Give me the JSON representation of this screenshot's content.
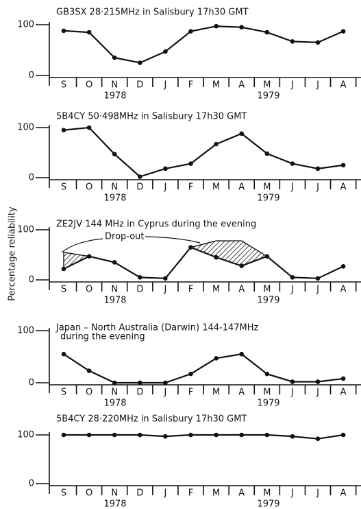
{
  "y_axis_label": "Percentage reliability",
  "chart_data": [
    {
      "type": "line",
      "title": "GB3SX   28·215MHz  in Salisbury 17h30 GMT",
      "categories": [
        "S",
        "O",
        "N",
        "D",
        "J",
        "F",
        "M",
        "A",
        "M",
        "J",
        "J",
        "A"
      ],
      "years": [
        "1978",
        "1979"
      ],
      "values": [
        88,
        85,
        35,
        25,
        47,
        87,
        97,
        95,
        85,
        67,
        65,
        87
      ],
      "color": "#111111",
      "ylim": [
        0,
        100
      ],
      "yticks": [
        0,
        100
      ]
    },
    {
      "type": "line",
      "title": "5B4CY  50·498MHz  in Salisbury 17h30 GMT",
      "categories": [
        "S",
        "O",
        "N",
        "D",
        "J",
        "F",
        "M",
        "A",
        "M",
        "J",
        "J",
        "A"
      ],
      "years": [
        "1978",
        "1979"
      ],
      "values": [
        95,
        100,
        47,
        2,
        18,
        28,
        67,
        88,
        48,
        28,
        18,
        25
      ],
      "color": "#111111",
      "ylim": [
        0,
        100
      ],
      "yticks": [
        0,
        100
      ]
    },
    {
      "type": "line",
      "title": "ZE2JV  144 MHz  in Cyprus during the evening",
      "annotation": "Drop-out",
      "categories": [
        "S",
        "O",
        "N",
        "D",
        "J",
        "F",
        "M",
        "A",
        "M",
        "J",
        "J",
        "A"
      ],
      "years": [
        "1978",
        "1979"
      ],
      "values": [
        22,
        47,
        35,
        5,
        3,
        65,
        45,
        28,
        47,
        5,
        3,
        27
      ],
      "dropout_upper": [
        55,
        47,
        null,
        null,
        null,
        65,
        78,
        78,
        47,
        null,
        null,
        37
      ],
      "color": "#111111",
      "ylim": [
        0,
        100
      ],
      "yticks": [
        0,
        100
      ]
    },
    {
      "type": "line",
      "title": "Japan – North Australia (Darwin)  144-147MHz",
      "subtitle": "during the evening",
      "categories": [
        "S",
        "O",
        "N",
        "D",
        "J",
        "F",
        "M",
        "A",
        "M",
        "J",
        "J",
        "A"
      ],
      "years": [
        "1978",
        "1979"
      ],
      "values": [
        55,
        23,
        0,
        0,
        0,
        17,
        47,
        55,
        17,
        2,
        2,
        8
      ],
      "color": "#111111",
      "ylim": [
        0,
        100
      ],
      "yticks": [
        0,
        100
      ]
    },
    {
      "type": "line",
      "title": "5B4CY  28·220MHz  in Salisbury  17h30 GMT",
      "categories": [
        "S",
        "O",
        "N",
        "D",
        "J",
        "F",
        "M",
        "A",
        "M",
        "J",
        "J",
        "A"
      ],
      "years": [
        "1978",
        "1979"
      ],
      "values": [
        100,
        100,
        100,
        100,
        97,
        100,
        100,
        100,
        100,
        97,
        92,
        100
      ],
      "color": "#111111",
      "ylim": [
        0,
        100
      ],
      "yticks": [
        0,
        100
      ]
    }
  ]
}
